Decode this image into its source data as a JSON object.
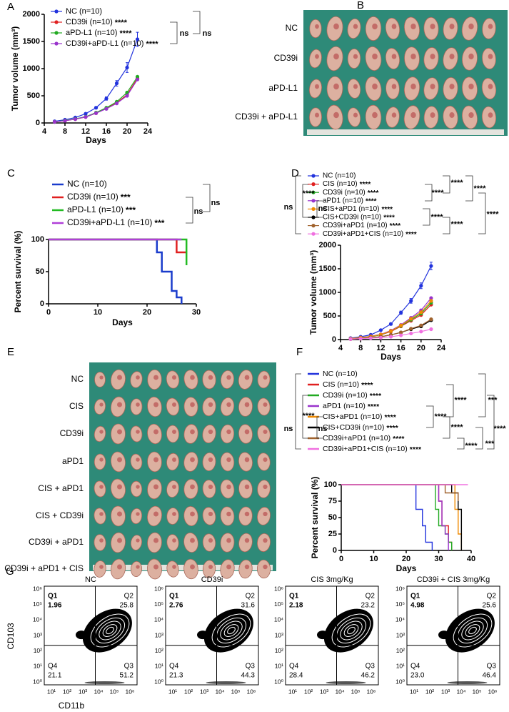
{
  "chart_data": [
    {
      "panel": "A",
      "type": "line",
      "xlabel": "Days",
      "ylabel": "Tumor volume (mm³)",
      "xlim": [
        4,
        24
      ],
      "xticks": [
        4,
        8,
        12,
        16,
        20,
        24
      ],
      "ylim": [
        0,
        2000
      ],
      "yticks": [
        0,
        500,
        1000,
        1500,
        2000
      ],
      "x": [
        6,
        8,
        10,
        12,
        14,
        16,
        18,
        20,
        22
      ],
      "series": [
        {
          "name": "NC (n=10)",
          "color": "#2233dd",
          "values": [
            30,
            60,
            100,
            170,
            280,
            450,
            730,
            1020,
            1540
          ],
          "errors": [
            5,
            8,
            10,
            15,
            20,
            30,
            50,
            90,
            130
          ]
        },
        {
          "name": "CD39i (n=10)",
          "significance": "****",
          "color": "#e02020",
          "values": [
            20,
            40,
            70,
            110,
            180,
            270,
            370,
            520,
            820
          ]
        },
        {
          "name": "aPD-L1 (n=10)",
          "significance": "****",
          "color": "#22aa22",
          "values": [
            20,
            45,
            75,
            115,
            190,
            280,
            390,
            560,
            850
          ]
        },
        {
          "name": "CD39i+aPD-L1 (n=10)",
          "significance": "****",
          "color": "#9933cc",
          "values": [
            20,
            40,
            70,
            110,
            180,
            260,
            360,
            500,
            800
          ]
        }
      ],
      "annotations": [
        "ns",
        "ns"
      ]
    },
    {
      "panel": "C",
      "type": "survival",
      "xlabel": "Days",
      "ylabel": "Percent survival (%)",
      "xlim": [
        0,
        30
      ],
      "xticks": [
        0,
        10,
        20,
        30
      ],
      "ylim": [
        0,
        100
      ],
      "yticks": [
        0,
        50,
        100
      ],
      "series": [
        {
          "name": "NC (n=10)",
          "color": "#1a3ccc",
          "x": [
            0,
            22,
            22,
            23,
            23,
            25,
            25,
            26,
            26,
            27,
            27
          ],
          "values": [
            100,
            100,
            80,
            80,
            50,
            50,
            20,
            20,
            10,
            10,
            0
          ]
        },
        {
          "name": "CD39i (n=10)",
          "significance": "***",
          "color": "#e02020",
          "x": [
            0,
            26,
            26,
            28
          ],
          "values": [
            100,
            100,
            80,
            80
          ]
        },
        {
          "name": "aPD-L1 (n=10)",
          "significance": "***",
          "color": "#22bb22",
          "x": [
            0,
            28,
            28
          ],
          "values": [
            100,
            100,
            60
          ]
        },
        {
          "name": "CD39i+aPD-L1 (n=10)",
          "significance": "***",
          "color": "#b03fd8",
          "x": [
            0,
            27
          ],
          "values": [
            100,
            100
          ]
        }
      ],
      "annotations": [
        "ns",
        "ns"
      ]
    },
    {
      "panel": "D",
      "type": "line",
      "xlabel": "Days",
      "ylabel": "Tumor volume (mm³)",
      "xlim": [
        4,
        24
      ],
      "xticks": [
        4,
        8,
        12,
        16,
        20,
        24
      ],
      "ylim": [
        0,
        2000
      ],
      "yticks": [
        0,
        500,
        1000,
        1500,
        2000
      ],
      "x": [
        6,
        8,
        10,
        12,
        14,
        16,
        18,
        20,
        22
      ],
      "series": [
        {
          "name": "NC (n=10)",
          "color": "#2233dd",
          "values": [
            30,
            60,
            100,
            200,
            330,
            570,
            820,
            1140,
            1560
          ],
          "errors": [
            5,
            8,
            10,
            15,
            25,
            35,
            50,
            60,
            80
          ]
        },
        {
          "name": "CIS (n=10)",
          "significance": "****",
          "color": "#e02020",
          "values": [
            20,
            40,
            60,
            100,
            170,
            280,
            400,
            520,
            740
          ]
        },
        {
          "name": "CD39i (n=10)",
          "significance": "****",
          "color": "#22aa22",
          "values": [
            20,
            40,
            60,
            100,
            180,
            290,
            420,
            550,
            780
          ]
        },
        {
          "name": "aPD1 (n=10)",
          "significance": "****",
          "color": "#9933cc",
          "values": [
            20,
            40,
            70,
            110,
            190,
            310,
            460,
            620,
            880
          ]
        },
        {
          "name": "CIS+aPD1 (n=10)",
          "significance": "****",
          "color": "#f08a00",
          "values": [
            20,
            40,
            65,
            105,
            180,
            300,
            440,
            580,
            820
          ]
        },
        {
          "name": "CIS+CD39i (n=10)",
          "significance": "****",
          "color": "#000000",
          "values": [
            10,
            20,
            40,
            60,
            100,
            150,
            220,
            280,
            410
          ]
        },
        {
          "name": "CD39i+aPD1 (n=10)",
          "significance": "****",
          "color": "#a0622d",
          "values": [
            10,
            20,
            40,
            60,
            100,
            150,
            230,
            300,
            430
          ]
        },
        {
          "name": "CD39i+aPD1+CIS (n=10)",
          "significance": "****",
          "color": "#f070e0",
          "values": [
            10,
            20,
            30,
            40,
            60,
            90,
            130,
            170,
            220
          ]
        }
      ],
      "annotations": [
        "****",
        "****",
        "****",
        "****",
        "****",
        "****",
        "ns",
        "****",
        "ns"
      ]
    },
    {
      "panel": "F",
      "type": "survival",
      "xlabel": "Days",
      "ylabel": "Percent survival (%)",
      "xlim": [
        0,
        40
      ],
      "xticks": [
        0,
        10,
        20,
        30,
        40
      ],
      "ylim": [
        0,
        100
      ],
      "yticks": [
        0,
        25,
        50,
        75,
        100
      ],
      "series": [
        {
          "name": "NC (n=10)",
          "color": "#2233dd",
          "x": [
            0,
            23,
            23,
            25,
            25,
            26,
            26,
            28,
            28
          ],
          "values": [
            100,
            100,
            62.5,
            62.5,
            37.5,
            37.5,
            12.5,
            12.5,
            0
          ]
        },
        {
          "name": "CIS (n=10)",
          "significance": "****",
          "color": "#e02020",
          "x": [
            0,
            30,
            30,
            31,
            31,
            33,
            33,
            34,
            34
          ],
          "values": [
            100,
            100,
            75,
            75,
            37.5,
            37.5,
            12.5,
            12.5,
            0
          ]
        },
        {
          "name": "CD39i (n=10)",
          "significance": "****",
          "color": "#22aa22",
          "x": [
            0,
            29,
            29,
            30,
            30,
            32,
            32,
            33,
            33,
            34,
            34
          ],
          "values": [
            100,
            100,
            62.5,
            62.5,
            37.5,
            37.5,
            25,
            25,
            12.5,
            12.5,
            0
          ]
        },
        {
          "name": "aPD1 (n=10)",
          "significance": "****",
          "color": "#9933cc",
          "x": [
            0,
            30,
            30,
            31,
            31,
            32,
            32,
            33,
            33
          ],
          "values": [
            100,
            100,
            75,
            75,
            37.5,
            37.5,
            25,
            25,
            0
          ]
        },
        {
          "name": "CIS+aPD1 (n=10)",
          "significance": "****",
          "color": "#f08a00",
          "x": [
            0,
            35,
            35,
            36,
            36,
            37,
            37
          ],
          "values": [
            100,
            100,
            62.5,
            62.5,
            25,
            25,
            0
          ]
        },
        {
          "name": "CIS+CD39i (n=10)",
          "significance": "****",
          "color": "#000000",
          "x": [
            0,
            34,
            34,
            36,
            36,
            37,
            37
          ],
          "values": [
            100,
            100,
            87.5,
            87.5,
            62.5,
            62.5,
            0
          ]
        },
        {
          "name": "CD39i+aPD1 (n=10)",
          "significance": "****",
          "color": "#a0622d",
          "x": [
            0,
            32,
            32,
            36,
            36
          ],
          "values": [
            100,
            100,
            87.5,
            87.5,
            75
          ]
        },
        {
          "name": "CD39i+aPD1+CIS (n=10)",
          "significance": "****",
          "color": "#f070e0",
          "x": [
            0,
            39
          ],
          "values": [
            100,
            100
          ]
        }
      ],
      "annotations": [
        "****",
        "***",
        "****",
        "***",
        "****",
        "****",
        "****",
        "ns",
        "****",
        "ns"
      ]
    }
  ],
  "photos": [
    {
      "panel": "B",
      "rows": [
        "NC",
        "CD39i",
        "aPD-L1",
        "CD39i + aPD-L1"
      ]
    },
    {
      "panel": "E",
      "rows": [
        "NC",
        "CIS",
        "CD39i",
        "aPD1",
        "CIS + aPD1",
        "CIS + CD39i",
        "CD39i + aPD1",
        "CD39i + aPD1 + CIS"
      ]
    }
  ],
  "flow": {
    "panel": "G",
    "xlabel": "CD11b",
    "ylabel": "CD103",
    "xticks": [
      "10¹",
      "10²",
      "10³",
      "10⁴",
      "10⁵",
      "10⁶"
    ],
    "yticks": [
      "10⁰",
      "10¹",
      "10²",
      "10³",
      "10⁴",
      "10⁵",
      "10⁶"
    ],
    "quadrant_names": [
      "Q1",
      "Q2",
      "Q3",
      "Q4"
    ],
    "plots": [
      {
        "title": "NC",
        "values": [
          "1.96",
          "25.8",
          "51.2",
          "21.1"
        ]
      },
      {
        "title": "CD39i",
        "values": [
          "2.76",
          "31.6",
          "44.3",
          "21.3"
        ]
      },
      {
        "title": "CIS 3mg/Kg",
        "values": [
          "2.18",
          "23.2",
          "46.2",
          "28.4"
        ]
      },
      {
        "title": "CD39i + CIS 3mg/Kg",
        "values": [
          "4.98",
          "25.6",
          "46.4",
          "23.0"
        ]
      }
    ]
  }
}
